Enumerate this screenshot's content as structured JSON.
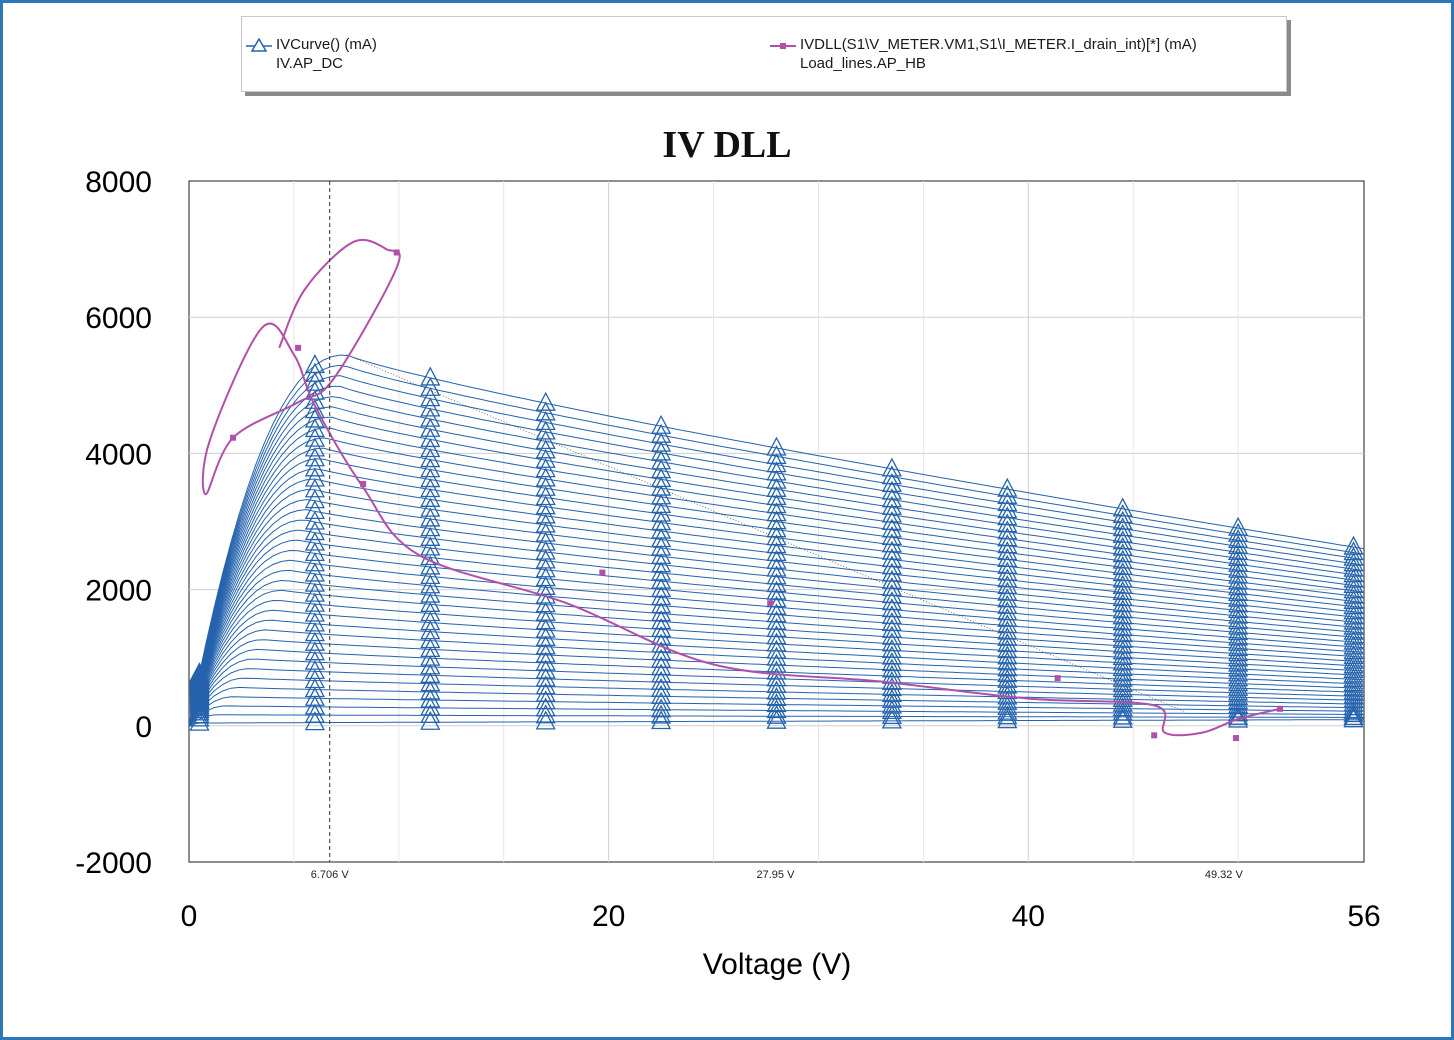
{
  "colors": {
    "iv": "#2563ad",
    "dll": "#b24fa8",
    "grid": "#cfcfcf",
    "frame": "#2a78b8"
  },
  "legend": {
    "series1_label": "IVCurve() (mA)",
    "series1_source": "IV.AP_DC",
    "series2_label": "IVDLL(S1\\V_METER.VM1,S1\\I_METER.I_drain_int)[*] (mA)",
    "series2_source": "Load_lines.AP_HB"
  },
  "chart_data": {
    "type": "line",
    "title": "IV DLL",
    "xlabel": "Voltage (V)",
    "ylabel": "",
    "xlim": [
      0,
      56
    ],
    "ylim": [
      -2000,
      8000
    ],
    "x_ticks": [
      0,
      20,
      40,
      56
    ],
    "y_ticks": [
      -2000,
      0,
      2000,
      4000,
      6000,
      8000
    ],
    "grid": true,
    "marker_x_voltages": [
      0.5,
      6,
      11.5,
      17,
      22.5,
      28,
      33.5,
      39,
      44.5,
      50,
      55.5
    ],
    "iv_curve": {
      "name": "IVCurve() (mA)",
      "num_curves": 38,
      "min_peak_current": 40,
      "max_peak_current": 5450,
      "peak_voltage": 7.5,
      "curve_high_at_56V": 2600,
      "curve_low_at_56V": 90
    },
    "load_line": {
      "name": "IVDLL(S1\\V_METER.VM1,S1\\I_METER.I_drain_int)[*] (mA)",
      "x": [
        52.0,
        50.0,
        48.3,
        46.5,
        46.0,
        40.0,
        33.0,
        25.0,
        18.0,
        11.0,
        8.3,
        6.0,
        5.0,
        3.5,
        1.0,
        0.8,
        2.1,
        5.2,
        6.9,
        9.9,
        9.4,
        7.8,
        5.5,
        4.3
      ],
      "y": [
        250,
        100,
        -100,
        -100,
        300,
        400,
        650,
        900,
        1800,
        2500,
        3500,
        4700,
        5450,
        5850,
        4200,
        3400,
        4230,
        4750,
        5100,
        6730,
        7000,
        7100,
        6400,
        5550
      ]
    },
    "load_line_markers": {
      "x": [
        52.0,
        49.9,
        46.0,
        41.4,
        27.7,
        19.7,
        8.3,
        2.1,
        5.2,
        9.9
      ],
      "y": [
        250,
        -180,
        -140,
        700,
        1800,
        2250,
        3550,
        4230,
        5550,
        6950
      ]
    },
    "reference_line": {
      "x": [
        7.5,
        47.5
      ],
      "y": [
        5450,
        200
      ]
    },
    "vertical_markers": [
      {
        "x": 6.706,
        "label": "6.706 V"
      },
      {
        "x": 27.95,
        "label": "27.95 V"
      },
      {
        "x": 49.32,
        "label": "49.32 V"
      }
    ]
  }
}
